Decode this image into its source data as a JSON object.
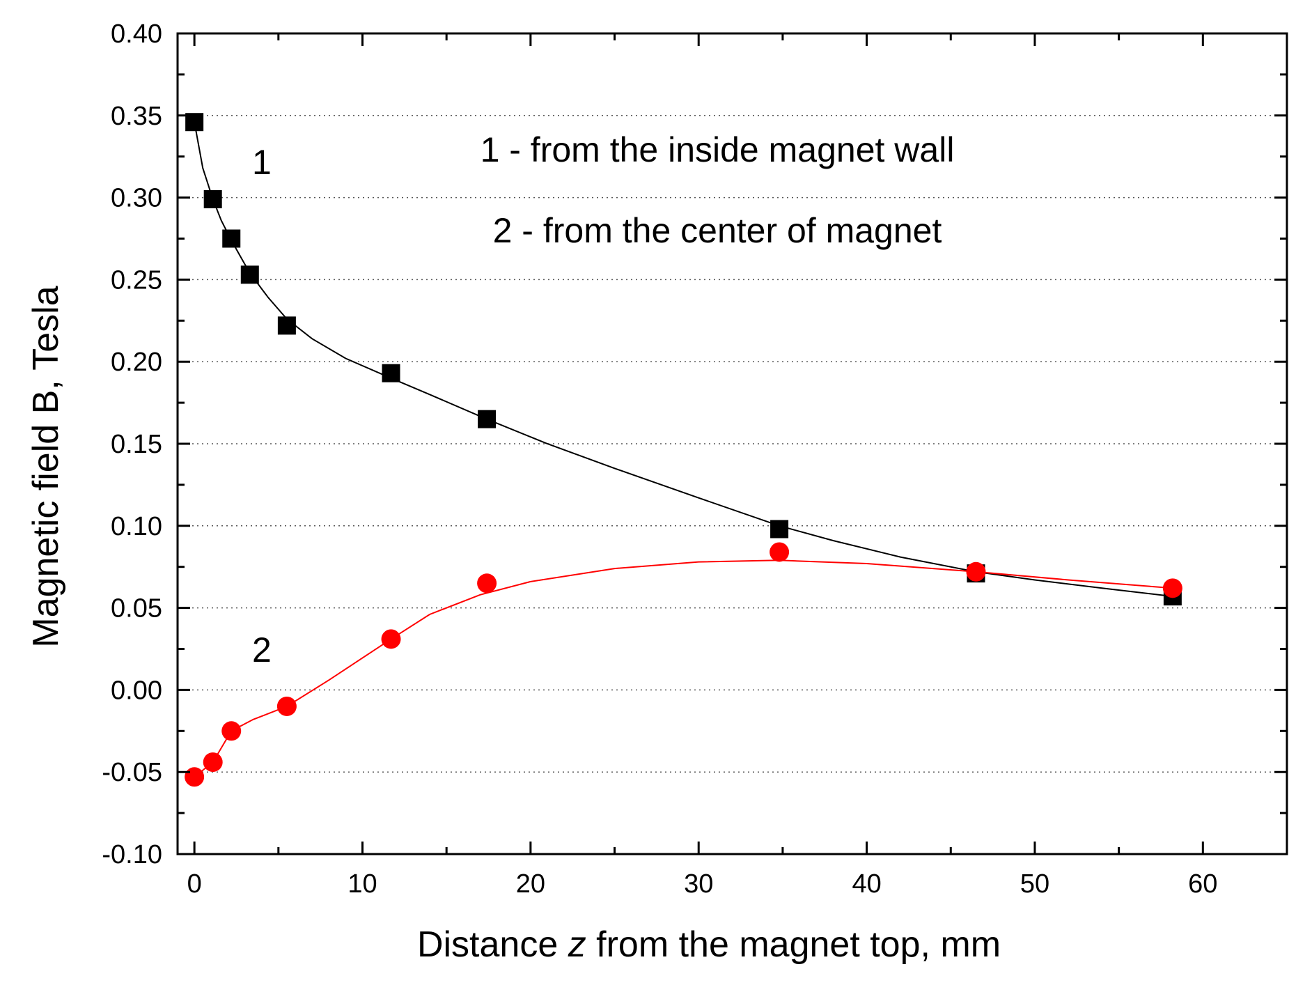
{
  "chart_data": {
    "type": "scatter",
    "title": "",
    "xlabel_prefix": "Distance ",
    "xlabel_var": "z",
    "xlabel_suffix": " from the magnet top,  mm",
    "ylabel": "Magnetic field B, Tesla",
    "xlim": [
      -1,
      65
    ],
    "ylim": [
      -0.1,
      0.4
    ],
    "x_ticks": [
      0,
      10,
      20,
      30,
      40,
      50,
      60
    ],
    "x_tick_labels": [
      "0",
      "10",
      "20",
      "30",
      "40",
      "50",
      "60"
    ],
    "y_ticks": [
      -0.1,
      -0.05,
      0.0,
      0.05,
      0.1,
      0.15,
      0.2,
      0.25,
      0.3,
      0.35,
      0.4
    ],
    "y_tick_labels": [
      "-0.10",
      "-0.05",
      "0.00",
      "0.05",
      "0.10",
      "0.15",
      "0.20",
      "0.25",
      "0.30",
      "0.35",
      "0.40"
    ],
    "grid": "horizontal-dotted",
    "legend_lines": [
      "1 - from the inside magnet wall",
      "2 - from the center of  magnet"
    ],
    "series": [
      {
        "name": "1",
        "label": "1",
        "marker": "square",
        "color": "#000000",
        "x": [
          0,
          1.1,
          2.2,
          3.3,
          5.5,
          11.7,
          17.4,
          34.8,
          46.5,
          58.2
        ],
        "y": [
          0.346,
          0.299,
          0.275,
          0.253,
          0.222,
          0.193,
          0.165,
          0.098,
          0.071,
          0.057
        ],
        "fit_x": [
          0,
          0.5,
          1.1,
          1.6,
          2.2,
          2.8,
          3.3,
          4.4,
          5.5,
          7,
          9,
          11.7,
          14,
          17.4,
          21,
          25,
          30,
          34.8,
          38,
          42,
          46.5,
          50,
          54,
          58.2
        ],
        "fit_y": [
          0.346,
          0.318,
          0.299,
          0.286,
          0.274,
          0.263,
          0.254,
          0.239,
          0.226,
          0.214,
          0.202,
          0.19,
          0.18,
          0.165,
          0.15,
          0.135,
          0.117,
          0.1,
          0.091,
          0.081,
          0.072,
          0.067,
          0.062,
          0.057
        ]
      },
      {
        "name": "2",
        "label": "2",
        "marker": "circle",
        "color": "#ff0000",
        "x": [
          0,
          1.1,
          2.2,
          5.5,
          11.7,
          17.4,
          34.8,
          46.5,
          58.2
        ],
        "y": [
          -0.053,
          -0.044,
          -0.025,
          -0.01,
          0.031,
          0.065,
          0.084,
          0.072,
          0.062
        ],
        "fit_x": [
          0,
          1.1,
          2.2,
          3.5,
          5.5,
          8,
          11.7,
          14,
          17,
          20,
          25,
          30,
          34.8,
          40,
          46.5,
          52,
          58.2
        ],
        "fit_y": [
          -0.053,
          -0.044,
          -0.025,
          -0.018,
          -0.01,
          0.006,
          0.031,
          0.046,
          0.058,
          0.066,
          0.074,
          0.078,
          0.079,
          0.077,
          0.072,
          0.067,
          0.062
        ]
      }
    ]
  }
}
